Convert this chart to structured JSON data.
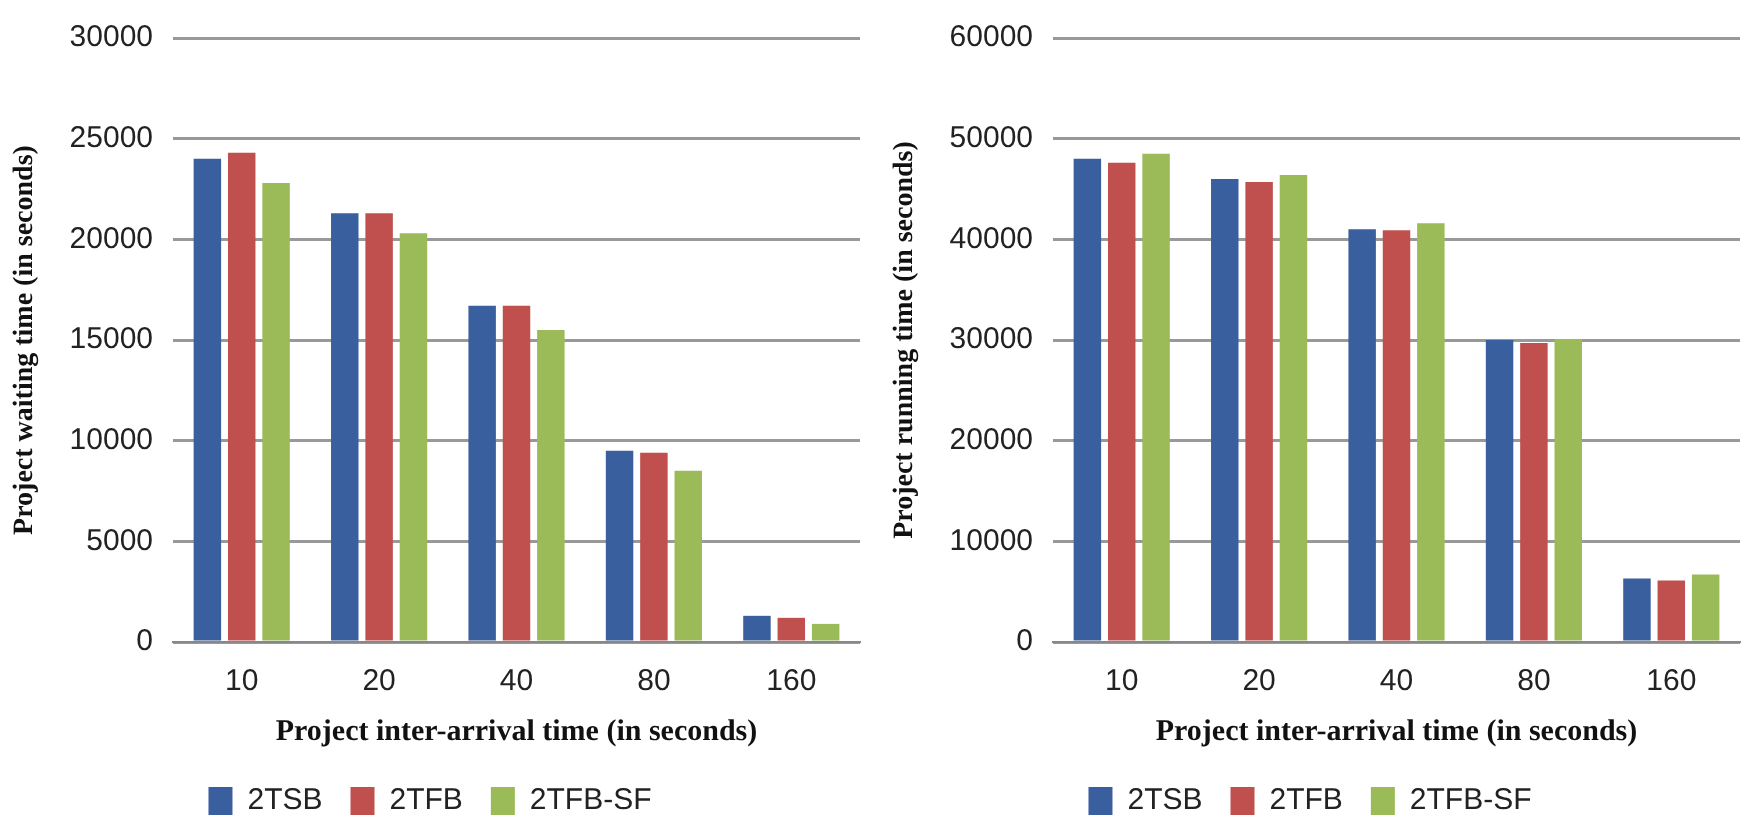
{
  "chart_data": [
    {
      "type": "bar",
      "categories": [
        "10",
        "20",
        "40",
        "80",
        "160"
      ],
      "xlabel": "Project inter-arrival time (in seconds)",
      "ylabel": "Project waiting time (in seconds)",
      "ylim": [
        0,
        30000
      ],
      "yticks": [
        0,
        5000,
        10000,
        15000,
        20000,
        25000,
        30000
      ],
      "grid": "y",
      "legend": "bottom",
      "series": [
        {
          "name": "2TSB",
          "color": "#3a5f9f",
          "values": [
            24000,
            21300,
            16700,
            9500,
            1300
          ]
        },
        {
          "name": "2TFB",
          "color": "#c0504d",
          "values": [
            24300,
            21300,
            16700,
            9400,
            1200
          ]
        },
        {
          "name": "2TFB-SF",
          "color": "#9bbb59",
          "values": [
            22800,
            20300,
            15500,
            8500,
            900
          ]
        }
      ]
    },
    {
      "type": "bar",
      "categories": [
        "10",
        "20",
        "40",
        "80",
        "160"
      ],
      "xlabel": "Project inter-arrival time (in seconds)",
      "ylabel": "Project running time (in seconds)",
      "ylim": [
        0,
        60000
      ],
      "yticks": [
        0,
        10000,
        20000,
        30000,
        40000,
        50000,
        60000
      ],
      "grid": "y",
      "legend": "bottom",
      "series": [
        {
          "name": "2TSB",
          "color": "#3a5f9f",
          "values": [
            48000,
            46000,
            41000,
            30000,
            6300
          ]
        },
        {
          "name": "2TFB",
          "color": "#c0504d",
          "values": [
            47600,
            45700,
            40900,
            29700,
            6100
          ]
        },
        {
          "name": "2TFB-SF",
          "color": "#9bbb59",
          "values": [
            48500,
            46400,
            41600,
            30100,
            6700
          ]
        }
      ]
    }
  ]
}
